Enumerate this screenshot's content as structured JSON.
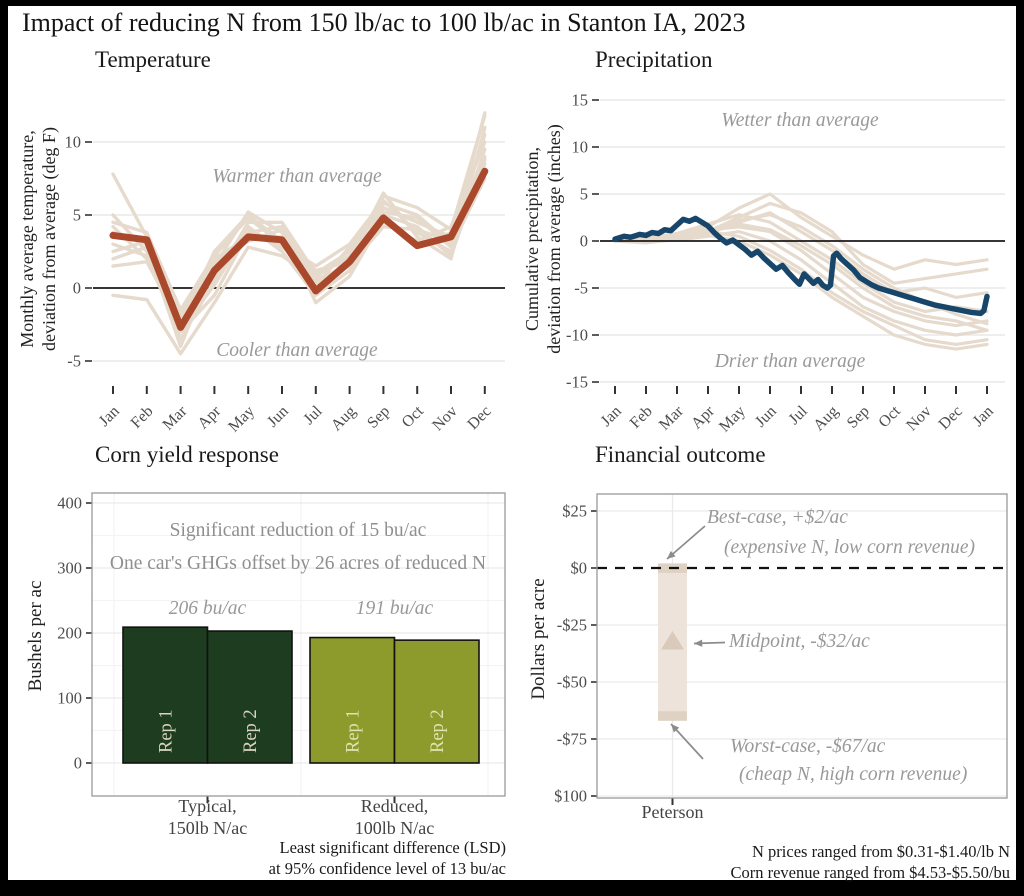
{
  "title": "Impact of reducing N from 150 lb/ac to 100 lb/ac in Stanton IA, 2023",
  "colors": {
    "red": "#A9482B",
    "beige": "#E6DACD",
    "blue": "#18466B",
    "dark_green": "#1E3C20",
    "olive": "#8D9A2C",
    "bar_fill": "#EDE3DA",
    "bar_cap": "#DFD2C3",
    "triangle": "#D9CABB",
    "annotation": "#999999",
    "arrow": "#8C8C8C",
    "axis_text": "#4D4D4D",
    "grid": "#E9E9E9",
    "grid_minor": "#F4F4F4",
    "zero": "#1A1A1A",
    "panel_border": "#999999"
  },
  "chart_data": [
    {
      "type": "line",
      "title": "Temperature",
      "ylabel": [
        "Monthly average temperature,",
        "deviation from average (deg F)"
      ],
      "categories": [
        "Jan",
        "Feb",
        "Mar",
        "Apr",
        "May",
        "Jun",
        "Jul",
        "Aug",
        "Sep",
        "Oct",
        "Nov",
        "Dec"
      ],
      "yticks": [
        10,
        5,
        0,
        -5
      ],
      "ylim": [
        -6.5,
        13
      ],
      "grid": "horizontal-only",
      "annotations": [
        {
          "text": "Warmer than average",
          "y": 8.2
        },
        {
          "text": "Cooler than average",
          "y": -4.3
        }
      ],
      "main_series": {
        "name": "2023",
        "values": [
          3.6,
          3.3,
          -2.7,
          1.2,
          3.5,
          3.3,
          -0.2,
          1.8,
          4.8,
          2.9,
          3.5,
          8.0
        ]
      },
      "context_series": [
        [
          7.8,
          3.5,
          -3.5,
          0.5,
          4.5,
          4.5,
          1.0,
          2.5,
          6.3,
          5.5,
          4.0,
          11.8
        ],
        [
          5.0,
          2.5,
          -2.0,
          1.5,
          5.2,
          3.8,
          0.5,
          1.5,
          5.5,
          4.5,
          3.5,
          10.5
        ],
        [
          4.5,
          3.8,
          -1.5,
          2.2,
          4.8,
          3.0,
          1.5,
          3.0,
          6.0,
          3.8,
          2.5,
          9.5
        ],
        [
          4.2,
          2.0,
          -3.0,
          -0.5,
          3.8,
          4.2,
          0.8,
          2.2,
          5.8,
          5.0,
          3.0,
          12.0
        ],
        [
          3.8,
          3.0,
          -2.2,
          1.0,
          4.2,
          2.5,
          -0.5,
          1.2,
          5.0,
          4.2,
          2.2,
          8.8
        ],
        [
          3.0,
          2.2,
          -1.8,
          2.0,
          3.5,
          3.5,
          0.2,
          2.8,
          4.5,
          3.2,
          4.2,
          10.0
        ],
        [
          2.5,
          3.2,
          -2.8,
          0.2,
          4.0,
          2.8,
          1.2,
          1.8,
          5.2,
          4.8,
          2.8,
          7.5
        ],
        [
          2.0,
          2.8,
          -4.0,
          1.8,
          3.2,
          4.0,
          -1.0,
          0.8,
          4.8,
          2.8,
          3.8,
          9.0
        ],
        [
          1.5,
          1.8,
          -2.5,
          2.5,
          5.0,
          3.2,
          0.0,
          2.0,
          6.5,
          3.5,
          2.0,
          11.0
        ],
        [
          -0.5,
          -0.8,
          -4.5,
          -1.0,
          2.8,
          2.2,
          0.6,
          1.5,
          4.2,
          4.0,
          3.2,
          8.5
        ]
      ]
    },
    {
      "type": "line",
      "title": "Precipitation",
      "ylabel": [
        "Cumulative precipitation,",
        "deviation from average (inches)"
      ],
      "categories": [
        "Jan",
        "Feb",
        "Mar",
        "Apr",
        "May",
        "Jun",
        "Jul",
        "Aug",
        "Sep",
        "Oct",
        "Nov",
        "Dec",
        "Jan"
      ],
      "yticks": [
        15,
        10,
        5,
        0,
        -5,
        -10,
        -15
      ],
      "ylim": [
        -16,
        16
      ],
      "grid": "horizontal-only",
      "annotations": [
        {
          "text": "Wetter than average",
          "y": 12.8
        },
        {
          "text": "Drier than average",
          "y": -13.2
        }
      ],
      "main_series": {
        "name": "2023",
        "points": [
          [
            0,
            0.2
          ],
          [
            0.3,
            0.5
          ],
          [
            0.5,
            0.4
          ],
          [
            0.8,
            0.7
          ],
          [
            1.0,
            0.6
          ],
          [
            1.2,
            0.9
          ],
          [
            1.4,
            0.8
          ],
          [
            1.6,
            1.2
          ],
          [
            1.8,
            1.1
          ],
          [
            2.0,
            1.7
          ],
          [
            2.2,
            2.3
          ],
          [
            2.4,
            2.1
          ],
          [
            2.6,
            2.4
          ],
          [
            2.8,
            2.0
          ],
          [
            3.0,
            1.6
          ],
          [
            3.2,
            0.9
          ],
          [
            3.4,
            0.3
          ],
          [
            3.6,
            -0.2
          ],
          [
            3.8,
            0.1
          ],
          [
            4.0,
            -0.4
          ],
          [
            4.2,
            -0.9
          ],
          [
            4.4,
            -1.5
          ],
          [
            4.6,
            -1.1
          ],
          [
            4.8,
            -1.8
          ],
          [
            5.0,
            -2.4
          ],
          [
            5.2,
            -3.0
          ],
          [
            5.4,
            -2.6
          ],
          [
            5.6,
            -3.4
          ],
          [
            5.8,
            -4.1
          ],
          [
            5.95,
            -4.6
          ],
          [
            6.1,
            -3.5
          ],
          [
            6.25,
            -4.0
          ],
          [
            6.4,
            -4.5
          ],
          [
            6.55,
            -4.1
          ],
          [
            6.7,
            -4.7
          ],
          [
            6.85,
            -5.0
          ],
          [
            6.95,
            -4.7
          ],
          [
            7.05,
            -1.6
          ],
          [
            7.15,
            -1.3
          ],
          [
            7.3,
            -1.9
          ],
          [
            7.5,
            -2.5
          ],
          [
            7.7,
            -3.1
          ],
          [
            7.9,
            -3.9
          ],
          [
            8.1,
            -4.3
          ],
          [
            8.3,
            -4.7
          ],
          [
            8.5,
            -5.0
          ],
          [
            8.8,
            -5.3
          ],
          [
            9.1,
            -5.6
          ],
          [
            9.4,
            -5.9
          ],
          [
            9.7,
            -6.2
          ],
          [
            10.0,
            -6.5
          ],
          [
            10.3,
            -6.8
          ],
          [
            10.6,
            -7.0
          ],
          [
            10.9,
            -7.2
          ],
          [
            11.2,
            -7.4
          ],
          [
            11.5,
            -7.6
          ],
          [
            11.8,
            -7.7
          ],
          [
            11.9,
            -7.4
          ],
          [
            12.0,
            -5.9
          ]
        ]
      },
      "context_series": [
        [
          0,
          0.2,
          0.5,
          1.5,
          3.5,
          5.0,
          2.5,
          0.5,
          -1.5,
          -3.0,
          -2.0,
          -2.5,
          -2.0
        ],
        [
          0,
          0.1,
          0.3,
          1.0,
          2.5,
          4.0,
          3.0,
          1.0,
          -2.5,
          -4.5,
          -4.0,
          -3.5,
          -3.0
        ],
        [
          0,
          -0.2,
          0.2,
          0.8,
          2.0,
          3.0,
          1.0,
          -1.0,
          -3.5,
          -5.5,
          -5.0,
          -6.0,
          -5.5
        ],
        [
          0,
          0.3,
          0.8,
          1.8,
          2.8,
          2.0,
          0.0,
          -2.0,
          -4.5,
          -6.5,
          -7.5,
          -7.0,
          -7.5
        ],
        [
          0,
          0.0,
          0.4,
          1.2,
          1.5,
          1.0,
          -1.0,
          -3.5,
          -6.0,
          -7.5,
          -8.5,
          -9.0,
          -8.5
        ],
        [
          0,
          -0.1,
          0.1,
          0.5,
          1.0,
          0.0,
          -2.0,
          -4.5,
          -7.0,
          -8.5,
          -9.5,
          -10.0,
          -9.5
        ],
        [
          0,
          0.2,
          0.6,
          1.0,
          0.5,
          -1.0,
          -3.0,
          -5.5,
          -7.5,
          -9.0,
          -10.5,
          -11.0,
          -10.5
        ],
        [
          0,
          0.1,
          0.2,
          0.6,
          0.0,
          -1.5,
          -3.5,
          -6.0,
          -8.0,
          -10.0,
          -11.0,
          -11.5,
          -11.0
        ],
        [
          0,
          0.0,
          0.3,
          0.9,
          1.8,
          1.2,
          -0.5,
          -2.5,
          -5.0,
          -7.0,
          -8.0,
          -8.5,
          -9.5
        ],
        [
          0,
          0.2,
          0.4,
          1.1,
          2.2,
          2.8,
          1.5,
          -0.5,
          -3.0,
          -5.0,
          -6.5,
          -7.8,
          -8.8
        ]
      ]
    },
    {
      "type": "bar",
      "title": "Corn yield response",
      "ylabel": "Bushels per ac",
      "yticks": [
        400,
        300,
        200,
        100,
        0
      ],
      "ylim": [
        -50,
        415
      ],
      "annotations": [
        "Significant reduction of 15 bu/ac",
        "One car's GHGs offset by 26 acres of reduced N"
      ],
      "groups": [
        {
          "label": [
            "Typical,",
            "150lb N/ac"
          ],
          "mean_label": "206 bu/ac",
          "bars": [
            {
              "label": "Rep 1",
              "value": 209
            },
            {
              "label": "Rep 2",
              "value": 203
            }
          ],
          "color": "#1E3C20",
          "rep_label_color": "#D9D4BF"
        },
        {
          "label": [
            "Reduced,",
            "100lb N/ac"
          ],
          "mean_label": "191 bu/ac",
          "bars": [
            {
              "label": "Rep 1",
              "value": 193
            },
            {
              "label": "Rep 2",
              "value": 189
            }
          ],
          "color": "#8D9A2C",
          "rep_label_color": "#DFE3B2"
        }
      ],
      "caption": [
        "Least significant difference (LSD)",
        "at 95% confidence level of 13 bu/ac"
      ]
    },
    {
      "type": "range-bar",
      "title": "Financial outcome",
      "ylabel": "Dollars per acre",
      "category": "Peterson",
      "yticks": [
        {
          "value": 25,
          "label": "$25"
        },
        {
          "value": 0,
          "label": "$0"
        },
        {
          "value": -25,
          "label": "-$25"
        },
        {
          "value": -50,
          "label": "-$50"
        },
        {
          "value": -75,
          "label": "-$75"
        },
        {
          "value": -100,
          "label": "-$100"
        }
      ],
      "ylim": [
        -105,
        32
      ],
      "range": {
        "best_case": 2,
        "midpoint": -32,
        "worst_case": -67
      },
      "zero_line": "dashed",
      "annotations": [
        "Best-case, +$2/ac",
        "(expensive N, low corn revenue)",
        "Midpoint, -$32/ac",
        "Worst-case, -$67/ac",
        "(cheap N,  high corn revenue)"
      ],
      "caption": [
        "N prices ranged from $0.31-$1.40/lb N",
        "Corn revenue ranged from $4.53-$5.50/bu"
      ]
    }
  ]
}
